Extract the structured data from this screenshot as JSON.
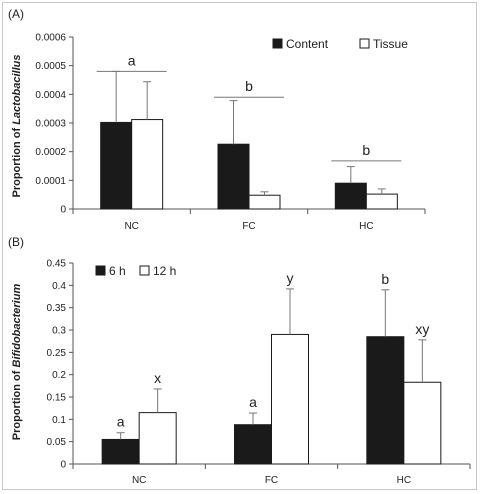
{
  "chart_data": [
    {
      "panel_label": "(A)",
      "type": "bar",
      "categories": [
        "NC",
        "FC",
        "HC"
      ],
      "ylabel_parts": [
        "Proportion of ",
        "Lactobacillus"
      ],
      "ylim": [
        0,
        0.0006
      ],
      "yticks": [
        "0",
        "0.0001",
        "0.0002",
        "0.0003",
        "0.0004",
        "0.0005",
        "0.0006"
      ],
      "legend_position": "top-right",
      "series": [
        {
          "name": "Content",
          "color": "#1a1a1a",
          "values": [
            0.000302,
            0.000226,
            9e-05
          ],
          "errors": [
            0.000178,
            0.000152,
            5.8e-05
          ]
        },
        {
          "name": "Tissue",
          "color": "#ffffff",
          "values": [
            0.000312,
            4.8e-05,
            5.2e-05
          ],
          "errors": [
            0.000132,
            1.2e-05,
            1.8e-05
          ]
        }
      ],
      "group_letters": [
        {
          "category": "NC",
          "label": "a",
          "bracket_y": 0.00048
        },
        {
          "category": "FC",
          "label": "b",
          "bracket_y": 0.00039
        },
        {
          "category": "HC",
          "label": "b",
          "bracket_y": 0.000168
        }
      ]
    },
    {
      "panel_label": "(B)",
      "type": "bar",
      "categories": [
        "NC",
        "FC",
        "HC"
      ],
      "ylabel_parts": [
        "Proportion of ",
        "Bifidobacterium"
      ],
      "ylim": [
        0,
        0.45
      ],
      "yticks": [
        "0",
        "0.05",
        "0.1",
        "0.15",
        "0.2",
        "0.25",
        "0.3",
        "0.35",
        "0.4",
        "0.45"
      ],
      "legend_position": "top-left",
      "series": [
        {
          "name": "6 h",
          "color": "#1a1a1a",
          "values": [
            0.055,
            0.088,
            0.285
          ],
          "errors": [
            0.015,
            0.026,
            0.105
          ],
          "letters": [
            "a",
            "a",
            "b"
          ]
        },
        {
          "name": "12 h",
          "color": "#ffffff",
          "values": [
            0.115,
            0.29,
            0.183
          ],
          "errors": [
            0.053,
            0.102,
            0.095
          ],
          "letters": [
            "x",
            "y",
            "xy"
          ]
        }
      ]
    }
  ]
}
